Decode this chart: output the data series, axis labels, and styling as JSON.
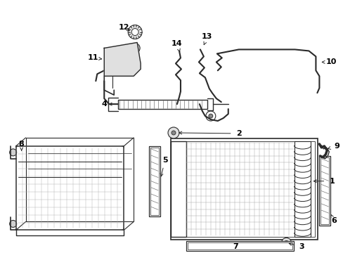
{
  "bg_color": "#ffffff",
  "line_color": "#2a2a2a",
  "fig_width": 4.89,
  "fig_height": 3.6,
  "dpi": 100
}
